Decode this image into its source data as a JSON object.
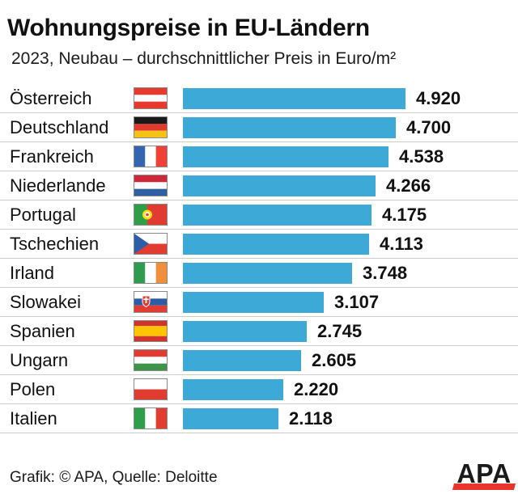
{
  "title": "Wohnungspreise in EU-Ländern",
  "subtitle": "2023, Neubau – durchschnittlicher Preis in Euro/m²",
  "footer": {
    "credit": "Grafik: © APA, Quelle: Deloitte",
    "logo_text": "APA"
  },
  "colors": {
    "background": "#FFFFFF",
    "text": "#111111",
    "bar": "#3CA9D6",
    "separator": "#CCCCCC",
    "flag_border": "#8A8A8A",
    "logo_red": "#E8342B"
  },
  "chart_data": {
    "type": "bar",
    "orientation": "horizontal",
    "title": "Wohnungspreise in EU-Ländern",
    "subtitle": "2023, Neubau – durchschnittlicher Preis in Euro/m²",
    "categories": [
      "Österreich",
      "Deutschland",
      "Frankreich",
      "Niederlande",
      "Portugal",
      "Tschechien",
      "Irland",
      "Slowakei",
      "Spanien",
      "Ungarn",
      "Polen",
      "Italien"
    ],
    "values": [
      4920,
      4700,
      4538,
      4266,
      4175,
      4113,
      3748,
      3107,
      2745,
      2605,
      2220,
      2118
    ],
    "value_labels": [
      "4.920",
      "4.700",
      "4.538",
      "4.266",
      "4.175",
      "4.113",
      "3.748",
      "3.107",
      "2.745",
      "2.605",
      "2.220",
      "2.118"
    ],
    "flag_codes": [
      "at",
      "de",
      "fr",
      "nl",
      "pt",
      "cz",
      "ie",
      "sk",
      "es",
      "hu",
      "pl",
      "it"
    ],
    "xlim": [
      0,
      4920
    ],
    "grid": false,
    "legend": false
  },
  "flags": {
    "at": {
      "type": "h",
      "stripes": [
        "#E8392F",
        "#FFFFFF",
        "#E8392F"
      ]
    },
    "de": {
      "type": "h",
      "stripes": [
        "#1A1A1A",
        "#E0392E",
        "#F5C218"
      ]
    },
    "fr": {
      "type": "v",
      "stripes": [
        "#3465B0",
        "#FFFFFF",
        "#EF4135"
      ]
    },
    "nl": {
      "type": "h",
      "stripes": [
        "#CE2939",
        "#FFFFFF",
        "#2E5FA3"
      ]
    },
    "pt": {
      "type": "v",
      "stripes": [
        "#2E9E49",
        "#E03C31"
      ],
      "widths": [
        0.4,
        0.6
      ],
      "emblem": "pt"
    },
    "cz": {
      "type": "h",
      "stripes": [
        "#FFFFFF",
        "#E03C31"
      ],
      "triangle": "#2B5DA9"
    },
    "ie": {
      "type": "v",
      "stripes": [
        "#2E9B4E",
        "#FFFFFF",
        "#EF8E3B"
      ]
    },
    "sk": {
      "type": "h",
      "stripes": [
        "#FFFFFF",
        "#2A5DA8",
        "#E03C31"
      ],
      "emblem": "sk"
    },
    "es": {
      "type": "h",
      "stripes": [
        "#D0342C",
        "#FFC400",
        "#D0342C"
      ],
      "widths": [
        0.25,
        0.5,
        0.25
      ]
    },
    "hu": {
      "type": "h",
      "stripes": [
        "#E03C31",
        "#FFFFFF",
        "#3E9348"
      ]
    },
    "pl": {
      "type": "h",
      "stripes": [
        "#FFFFFF",
        "#E03C31"
      ]
    },
    "it": {
      "type": "v",
      "stripes": [
        "#2E9E49",
        "#FFFFFF",
        "#E03C31"
      ]
    }
  }
}
